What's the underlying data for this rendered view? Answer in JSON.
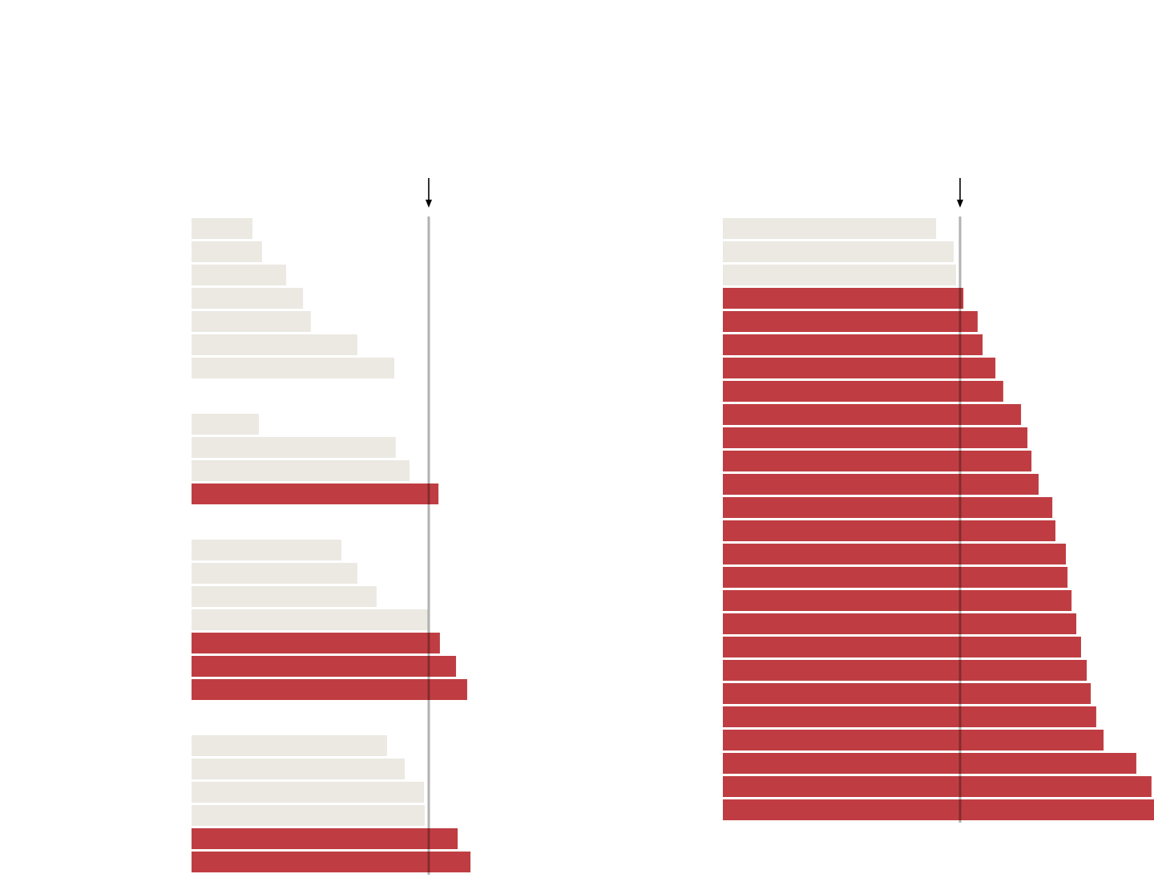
{
  "chart_data": [
    {
      "type": "bar",
      "orientation": "horizontal",
      "threshold": 100,
      "xlim": [
        0,
        120
      ],
      "color_below": "#ebe9e2",
      "color_above": "#bf3d42",
      "threshold_color": "#000000",
      "groups": [
        {
          "values": [
            25.7,
            29.7,
            39.9,
            47,
            50.3,
            69.9,
            85.5
          ]
        },
        {
          "values": [
            28.4,
            86.1,
            91.9,
            104.1
          ]
        },
        {
          "values": [
            63.2,
            69.9,
            78,
            99.7,
            104.7,
            111.5,
            116.2
          ]
        },
        {
          "values": [
            82.4,
            89.9,
            98,
            98.3,
            112.2,
            117.6
          ]
        }
      ]
    },
    {
      "type": "bar",
      "orientation": "horizontal",
      "threshold": 100,
      "xlim": [
        0,
        182
      ],
      "color_below": "#ebe9e2",
      "color_above": "#bf3d42",
      "threshold_color": "#000000",
      "groups": [
        {
          "values": [
            89.9,
            97.3,
            98.3,
            101.4,
            107.4,
            109.5,
            114.9,
            118.2,
            125.7,
            128.4,
            130.1,
            133.1,
            138.9,
            140.2,
            144.6,
            145.3,
            147,
            149,
            151,
            153.4,
            155.1,
            157.4,
            160.5,
            174.3,
            180.7,
            181.8
          ]
        }
      ]
    }
  ]
}
